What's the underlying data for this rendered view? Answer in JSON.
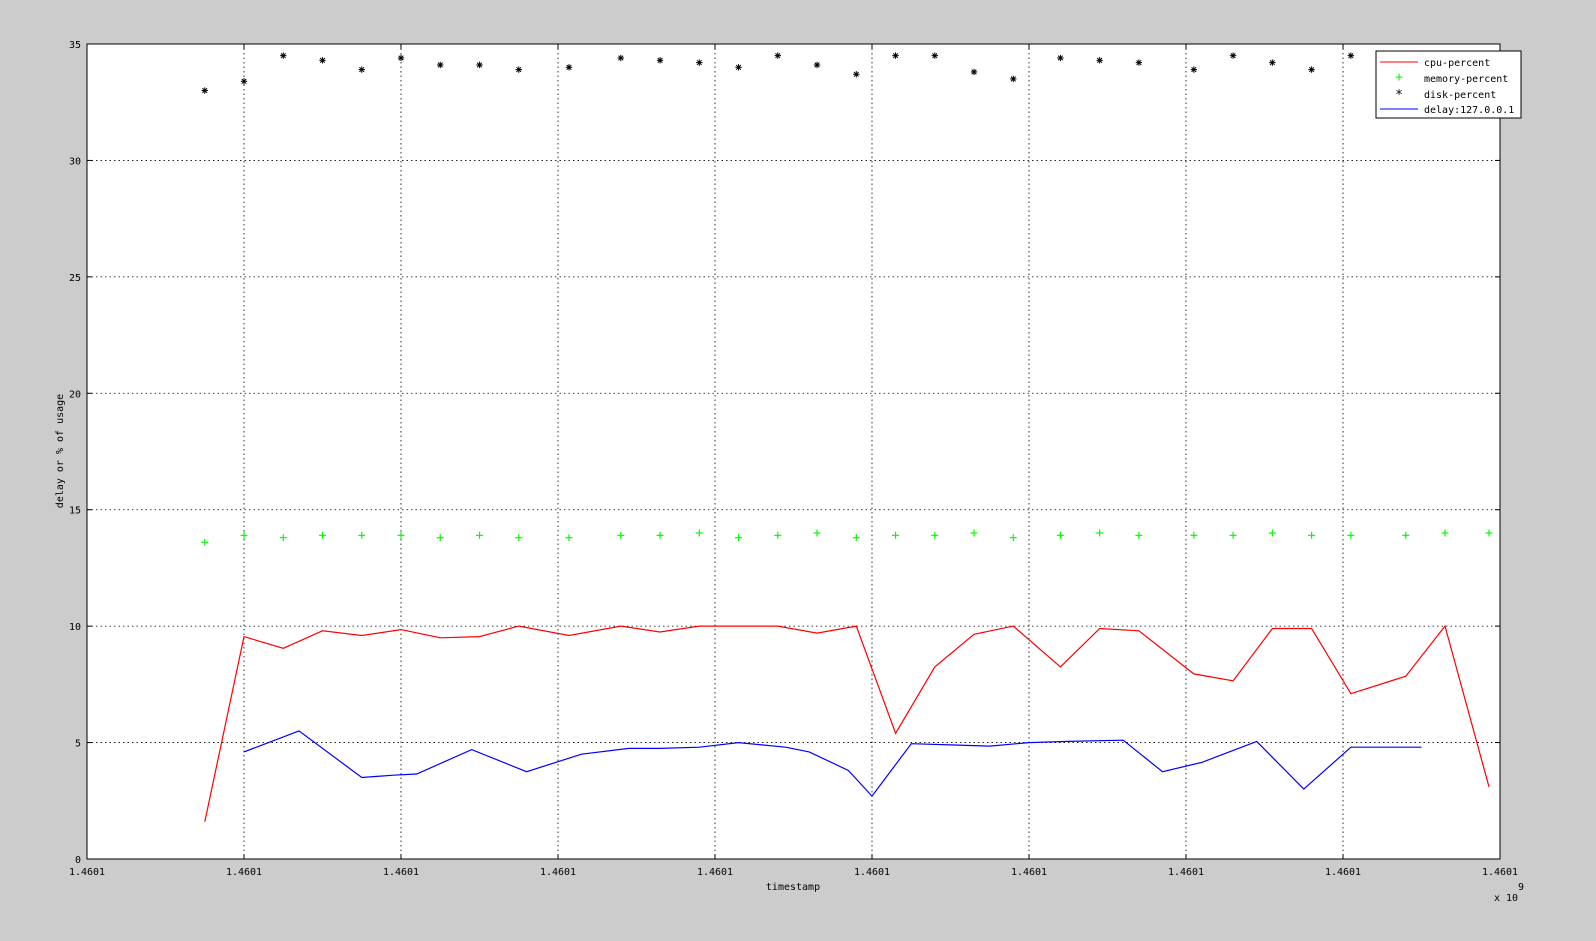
{
  "chart_data": {
    "type": "line",
    "title": "",
    "xlabel": "timestamp",
    "ylabel": "delay or % of usage",
    "x_multiplier": {
      "base": "x 10",
      "exponent": "9"
    },
    "xlim": [
      0,
      9
    ],
    "ylim": [
      0,
      35
    ],
    "x_tick_values": [
      0,
      1,
      2,
      3,
      4,
      5,
      6,
      7,
      8,
      9
    ],
    "x_tick_labels": [
      "1.4601",
      "1.4601",
      "1.4601",
      "1.4601",
      "1.4601",
      "1.4601",
      "1.4601",
      "1.4601",
      "1.4601",
      "1.4601"
    ],
    "y_ticks": [
      0,
      5,
      10,
      15,
      20,
      25,
      30,
      35
    ],
    "grid": true,
    "legend_position": "top-right",
    "series": [
      {
        "name": "cpu-percent",
        "style": "line",
        "color": "#ff0000",
        "x": [
          0.75,
          1.0,
          1.25,
          1.5,
          1.75,
          2.0,
          2.25,
          2.5,
          2.75,
          3.07,
          3.4,
          3.65,
          3.9,
          4.15,
          4.4,
          4.65,
          4.9,
          5.15,
          5.4,
          5.65,
          5.9,
          6.2,
          6.45,
          6.7,
          7.05,
          7.3,
          7.55,
          7.8,
          8.05,
          8.4,
          8.65,
          8.93
        ],
        "y": [
          1.6,
          9.55,
          9.05,
          9.8,
          9.6,
          9.85,
          9.5,
          9.55,
          10.0,
          9.6,
          10.0,
          9.75,
          10.0,
          10.0,
          10.0,
          9.7,
          10.0,
          5.4,
          8.25,
          9.65,
          10.0,
          8.25,
          9.9,
          9.8,
          7.95,
          7.65,
          9.9,
          9.9,
          7.1,
          7.85,
          10.0,
          3.1
        ]
      },
      {
        "name": "memory-percent",
        "style": "marker",
        "marker": "+",
        "color": "#00ff00",
        "x": [
          0.75,
          1.0,
          1.25,
          1.5,
          1.75,
          2.0,
          2.25,
          2.5,
          2.75,
          3.07,
          3.4,
          3.65,
          3.9,
          4.15,
          4.4,
          4.65,
          4.9,
          5.15,
          5.4,
          5.65,
          5.9,
          6.2,
          6.45,
          6.7,
          7.05,
          7.3,
          7.55,
          7.8,
          8.05,
          8.4,
          8.65,
          8.93
        ],
        "y": [
          13.6,
          13.9,
          13.8,
          13.9,
          13.9,
          13.9,
          13.8,
          13.9,
          13.8,
          13.8,
          13.9,
          13.9,
          14.0,
          13.8,
          13.9,
          14.0,
          13.8,
          13.9,
          13.9,
          14.0,
          13.8,
          13.9,
          14.0,
          13.9,
          13.9,
          13.9,
          14.0,
          13.9,
          13.9,
          13.9,
          14.0,
          14.0
        ]
      },
      {
        "name": "disk-percent",
        "style": "marker",
        "marker": "*",
        "color": "#000000",
        "x": [
          0.75,
          1.0,
          1.25,
          1.5,
          1.75,
          2.0,
          2.25,
          2.5,
          2.75,
          3.07,
          3.4,
          3.65,
          3.9,
          4.15,
          4.4,
          4.65,
          4.9,
          5.15,
          5.4,
          5.65,
          5.9,
          6.2,
          6.45,
          6.7,
          7.05,
          7.3,
          7.55,
          7.8,
          8.05
        ],
        "y": [
          33.0,
          33.4,
          34.5,
          34.3,
          33.9,
          34.4,
          34.1,
          34.1,
          33.9,
          34.0,
          34.4,
          34.3,
          34.2,
          34.0,
          34.5,
          34.1,
          33.7,
          34.5,
          34.5,
          33.8,
          33.5,
          34.4,
          34.3,
          34.2,
          33.9,
          34.5,
          34.2,
          33.9,
          34.5
        ]
      },
      {
        "name": "delay:127.0.0.1",
        "style": "line",
        "color": "#0000ff",
        "x": [
          1.0,
          1.35,
          1.75,
          1.95,
          2.1,
          2.45,
          2.8,
          3.15,
          3.45,
          3.65,
          3.9,
          4.15,
          4.45,
          4.6,
          4.85,
          5.0,
          5.25,
          5.5,
          5.75,
          6.0,
          6.25,
          6.6,
          6.85,
          7.1,
          7.45,
          7.75,
          8.05,
          8.5
        ],
        "y": [
          4.6,
          5.5,
          3.5,
          3.6,
          3.65,
          4.7,
          3.75,
          4.5,
          4.75,
          4.75,
          4.8,
          5.0,
          4.8,
          4.6,
          3.8,
          2.7,
          4.95,
          4.9,
          4.85,
          5.0,
          5.05,
          5.1,
          3.75,
          4.15,
          5.05,
          3.0,
          4.8,
          4.8
        ]
      }
    ]
  }
}
